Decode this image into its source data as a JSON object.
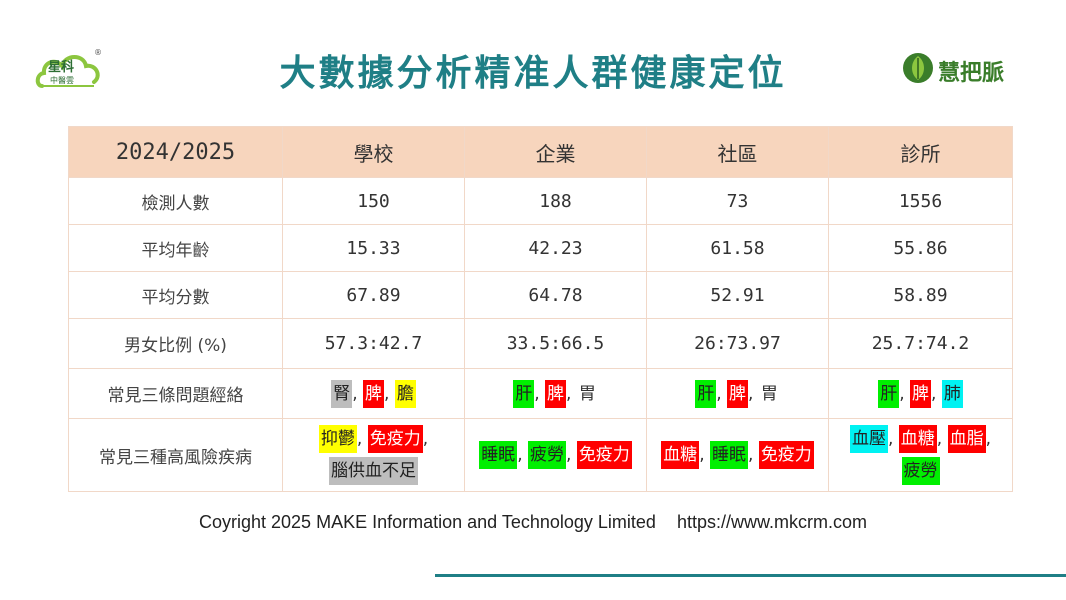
{
  "brand_left": {
    "name": "星科",
    "sub": "中醫雲",
    "reg": "®"
  },
  "title": "大數據分析精准人群健康定位",
  "brand_right": {
    "name": "慧把脈"
  },
  "table": {
    "header": [
      "2024/2025",
      "學校",
      "企業",
      "社區",
      "診所"
    ],
    "rows": [
      {
        "label": "檢測人數",
        "values": [
          "150",
          "188",
          "73",
          "1556"
        ]
      },
      {
        "label": "平均年齡",
        "values": [
          "15.33",
          "42.23",
          "61.58",
          "55.86"
        ]
      },
      {
        "label": "平均分數",
        "values": [
          "67.89",
          "64.78",
          "52.91",
          "58.89"
        ]
      },
      {
        "label": "男女比例 (%)",
        "values": [
          "57.3:42.7",
          "33.5:66.5",
          "26:73.97",
          "25.7:74.2"
        ]
      }
    ],
    "meridian_row": {
      "label": "常見三條問題經絡",
      "cells": [
        [
          {
            "text": "腎",
            "color": "gray"
          },
          {
            "text": "脾",
            "color": "red"
          },
          {
            "text": "膽",
            "color": "yellow"
          }
        ],
        [
          {
            "text": "肝",
            "color": "green"
          },
          {
            "text": "脾",
            "color": "red"
          },
          {
            "text": "胃",
            "color": "plain"
          }
        ],
        [
          {
            "text": "肝",
            "color": "green"
          },
          {
            "text": "脾",
            "color": "red"
          },
          {
            "text": "胃",
            "color": "plain"
          }
        ],
        [
          {
            "text": "肝",
            "color": "green"
          },
          {
            "text": "脾",
            "color": "red"
          },
          {
            "text": "肺",
            "color": "cyan"
          }
        ]
      ]
    },
    "disease_row": {
      "label": "常見三種高風險疾病",
      "cells": [
        [
          {
            "text": "抑鬱",
            "color": "yellow"
          },
          {
            "text": "免疫力",
            "color": "red"
          },
          {
            "text": "腦供血不足",
            "color": "gray"
          }
        ],
        [
          {
            "text": "睡眠",
            "color": "green"
          },
          {
            "text": "疲勞",
            "color": "green"
          },
          {
            "text": "免疫力",
            "color": "red"
          }
        ],
        [
          {
            "text": "血糖",
            "color": "red"
          },
          {
            "text": "睡眠",
            "color": "green"
          },
          {
            "text": "免疫力",
            "color": "red"
          }
        ],
        [
          {
            "text": "血壓",
            "color": "cyan"
          },
          {
            "text": "血糖",
            "color": "red"
          },
          {
            "text": "血脂",
            "color": "red"
          },
          {
            "text": "疲勞",
            "color": "green"
          }
        ]
      ]
    }
  },
  "footer": {
    "copyright": "Coyright 2025 MAKE Information and Technology Limited",
    "url": "https://www.mkcrm.com"
  },
  "colors": {
    "title": "#1f7f86",
    "header_bg": "#f7d5bd",
    "accent_line": "#1f7f86"
  }
}
